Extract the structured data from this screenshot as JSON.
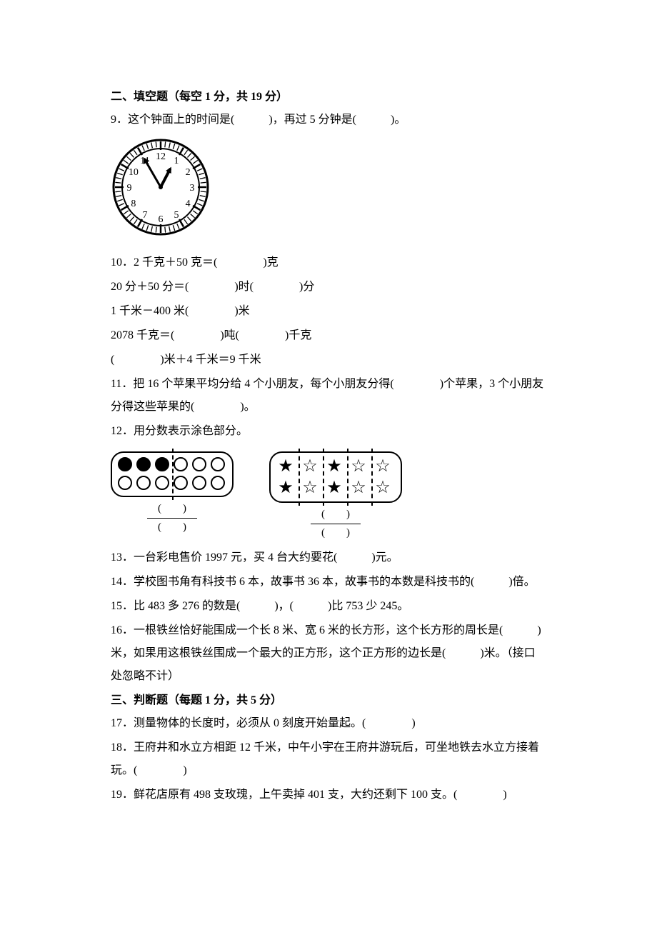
{
  "section2": {
    "title": "二、填空题（每空 1 分，共 19 分）",
    "q9": {
      "text": "9．这个钟面上的时间是(　　　)，再过 5 分钟是(　　　)。",
      "clock": {
        "hour": 12,
        "minute": 55,
        "face_color": "#ffffff",
        "border_color": "#000000",
        "tick_color": "#000000",
        "hand_color": "#000000",
        "numbers": [
          "12",
          "1",
          "2",
          "3",
          "4",
          "5",
          "6",
          "7",
          "8",
          "9",
          "10",
          "11"
        ]
      }
    },
    "q10": {
      "line1": "10．2 千克＋50 克＝(　　　　)克",
      "line2": "20 分＋50 分＝(　　　　)时(　　　　)分",
      "line3": "1 千米－400 米(　　　　)米",
      "line4": "2078 千克＝(　　　　)吨(　　　　)千克",
      "line5": "(　　　　)米＋4 千米＝9 千米"
    },
    "q11": "11．把 16 个苹果平均分给 4 个小朋友，每个小朋友分得(　　　　)个苹果，3 个小朋友分得这些苹果的(　　　　)。",
    "q12": {
      "text": "12．用分数表示涂色部分。",
      "fig1": {
        "type": "circle_grid",
        "cols": 6,
        "rows": 2,
        "filled": [
          1,
          1,
          1,
          0,
          0,
          0,
          0,
          0,
          0,
          0,
          0,
          0
        ],
        "divider_cols": [
          3
        ]
      },
      "fig2": {
        "type": "star_grid",
        "cols": 5,
        "rows": 2,
        "filled": [
          1,
          0,
          1,
          0,
          0,
          1,
          0,
          1,
          0,
          0
        ],
        "divider_cols": [
          1,
          2,
          3,
          4
        ]
      },
      "frac_label_top": "(　　)",
      "frac_label_bottom": "(　　)"
    },
    "q13": "13．一台彩电售价 1997 元，买 4 台大约要花(　　　)元。",
    "q14": "14．学校图书角有科技书 6 本，故事书 36 本，故事书的本数是科技书的(　　　)倍。",
    "q15": "15．比 483 多 276 的数是(　　　)，(　　　)比 753 少 245。",
    "q16": "16．一根铁丝恰好能围成一个长 8 米、宽 6 米的长方形，这个长方形的周长是(　　　)米，如果用这根铁丝围成一个最大的正方形，这个正方形的边长是(　　　)米。（接口处忽略不计）"
  },
  "section3": {
    "title": "三、判断题（每题 1 分，共 5 分）",
    "q17": "17．测量物体的长度时，必须从 0 刻度开始量起。(　　　　)",
    "q18": "18．王府井和水立方相距 12 千米，中午小宇在王府井游玩后，可坐地铁去水立方接着玩。(　　　　)",
    "q19": "19．鲜花店原有 498 支玫瑰，上午卖掉 401 支，大约还剩下 100 支。(　　　　)"
  }
}
